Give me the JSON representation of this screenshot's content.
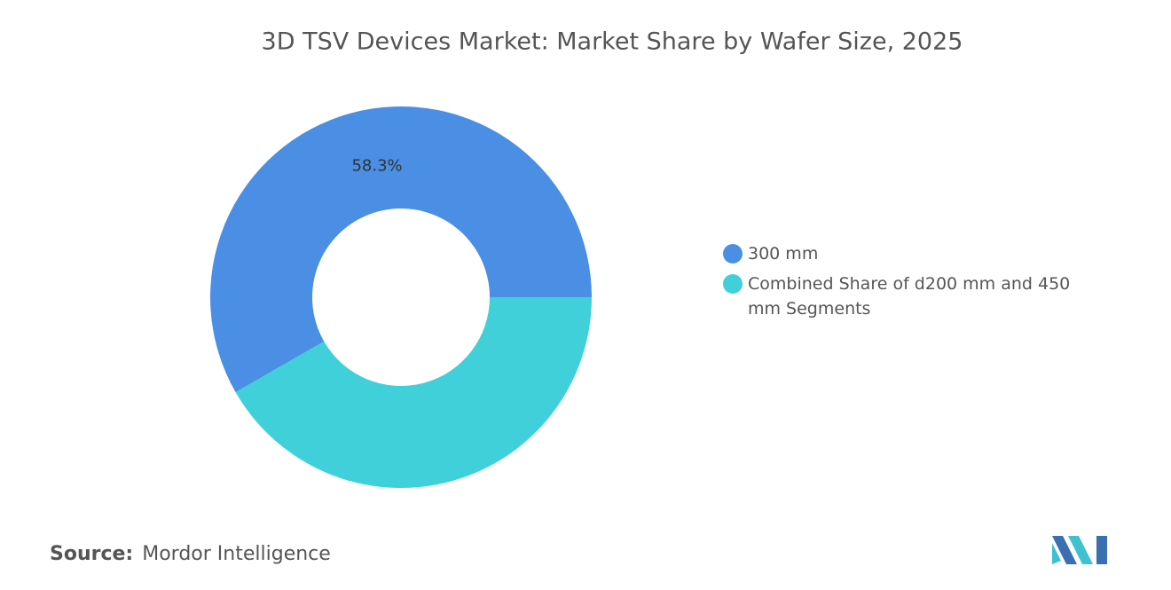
{
  "chart_data": {
    "type": "pie",
    "title": "3D TSV Devices Market: Market Share by Wafer Size, 2025",
    "categories": [
      "300 mm",
      "Combined Share of d200 mm and 450 mm Segments"
    ],
    "values": [
      58.3,
      41.7
    ],
    "value_labels": [
      "58.3%",
      null
    ],
    "colors": [
      "#4a8fe3",
      "#40d0d9"
    ],
    "legend": "right"
  },
  "source": {
    "label": "Source:",
    "text": "Mordor Intelligence"
  }
}
